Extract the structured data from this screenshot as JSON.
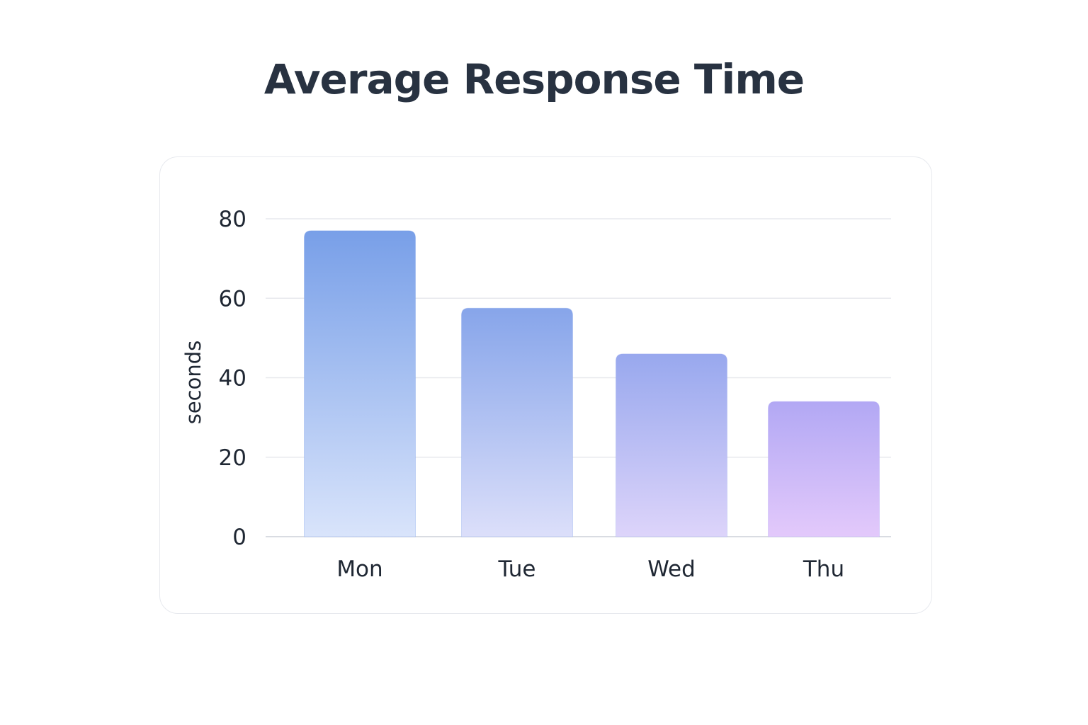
{
  "chart_data": {
    "type": "bar",
    "title": "Average Response Time",
    "xlabel": "",
    "ylabel": "seconds",
    "categories": [
      "Mon",
      "Tue",
      "Wed",
      "Thu"
    ],
    "values": [
      77,
      57.5,
      46,
      34
    ],
    "ylim": [
      0,
      80
    ],
    "yticks": [
      0,
      20,
      40,
      60,
      80
    ],
    "grid": true,
    "legend": "none",
    "colors": {
      "bar_top": [
        "#789fe8",
        "#87a5ea",
        "#98a8ee",
        "#b2a8f4"
      ],
      "bar_bottom": [
        "#d9e4fb",
        "#dcdffa",
        "#ddd4fa",
        "#e3c9fb"
      ],
      "grid": "#e7e9ed",
      "text": "#1f2733",
      "title": "#283241"
    }
  }
}
